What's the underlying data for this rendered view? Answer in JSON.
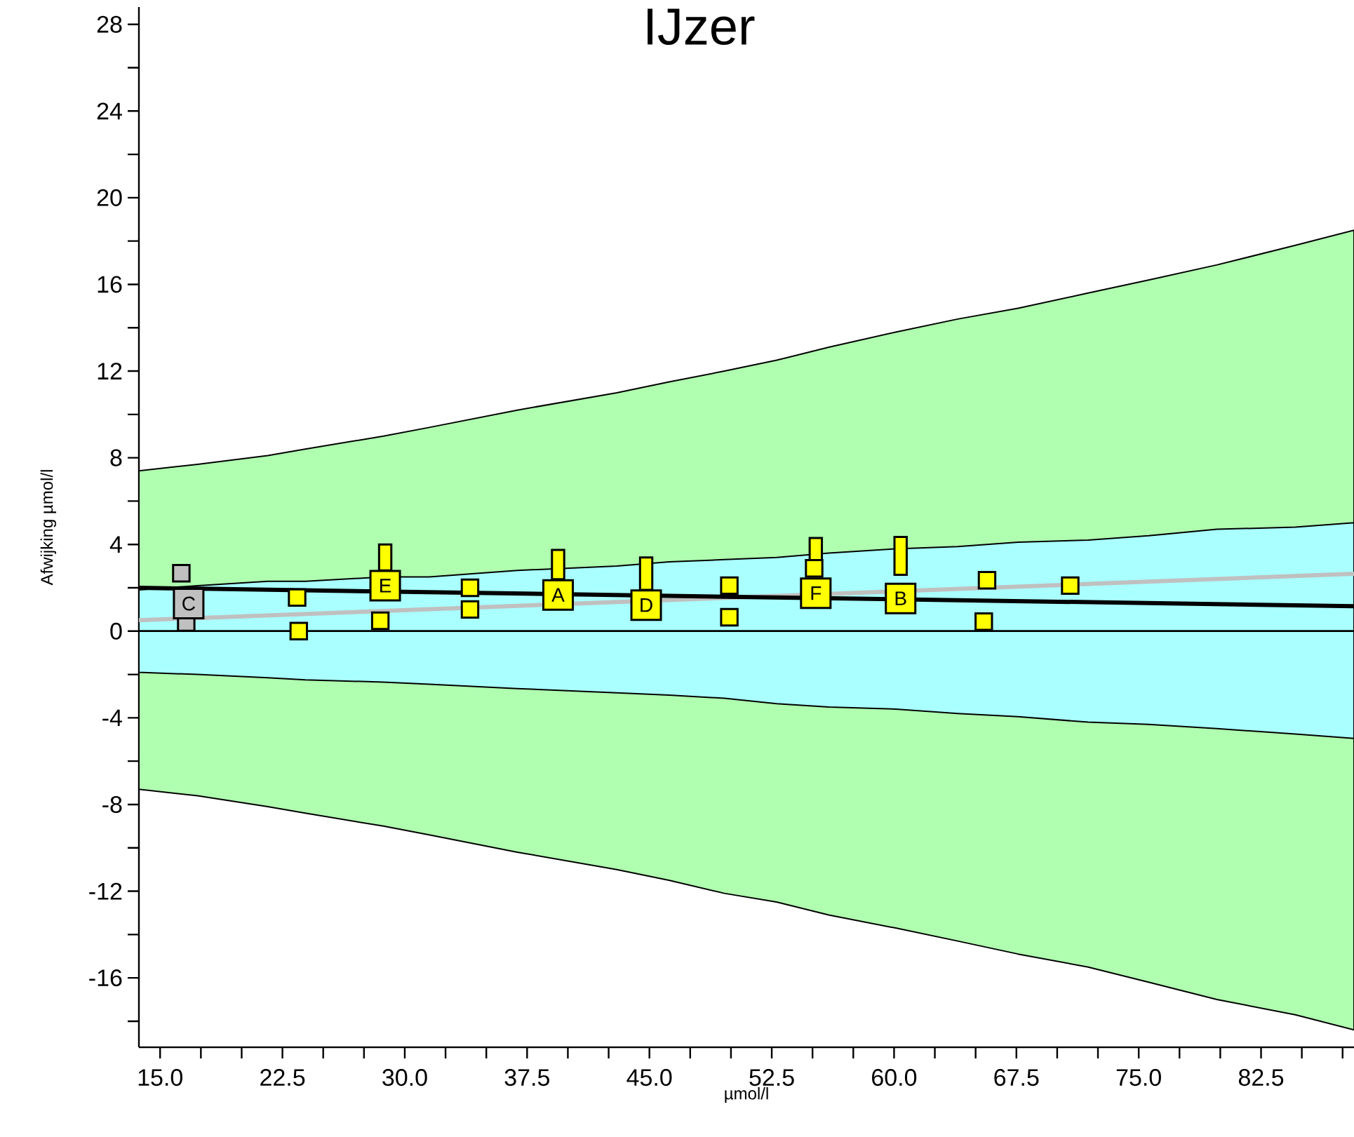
{
  "chart_data": {
    "type": "bubble",
    "title": "IJzer",
    "xlabel": "µmol/l",
    "ylabel": "Afwijking µmol/l",
    "xlim": [
      13.7,
      88.2
    ],
    "ylim": [
      -19.2,
      28.8
    ],
    "xticks": [
      {
        "value": 15,
        "label": "15.0"
      },
      {
        "value": 17.5,
        "label": null
      },
      {
        "value": 20,
        "label": null
      },
      {
        "value": 22.5,
        "label": "22.5"
      },
      {
        "value": 25,
        "label": null
      },
      {
        "value": 27.5,
        "label": null
      },
      {
        "value": 30,
        "label": "30.0"
      },
      {
        "value": 32.5,
        "label": null
      },
      {
        "value": 35,
        "label": null
      },
      {
        "value": 37.5,
        "label": "37.5"
      },
      {
        "value": 40,
        "label": null
      },
      {
        "value": 42.5,
        "label": null
      },
      {
        "value": 45,
        "label": "45.0"
      },
      {
        "value": 47.5,
        "label": null
      },
      {
        "value": 50,
        "label": null
      },
      {
        "value": 52.5,
        "label": "52.5"
      },
      {
        "value": 55,
        "label": null
      },
      {
        "value": 57.5,
        "label": null
      },
      {
        "value": 60,
        "label": "60.0"
      },
      {
        "value": 62.5,
        "label": null
      },
      {
        "value": 65,
        "label": null
      },
      {
        "value": 67.5,
        "label": "67.5"
      },
      {
        "value": 70,
        "label": null
      },
      {
        "value": 72.5,
        "label": null
      },
      {
        "value": 75,
        "label": "75.0"
      },
      {
        "value": 77.5,
        "label": null
      },
      {
        "value": 80,
        "label": null
      },
      {
        "value": 82.5,
        "label": "82.5"
      },
      {
        "value": 85,
        "label": null
      },
      {
        "value": 87.5,
        "label": null
      }
    ],
    "yticks": [
      {
        "value": -18,
        "label": null
      },
      -16,
      {
        "value": -14,
        "label": null
      },
      -12,
      {
        "value": -10,
        "label": null
      },
      -8,
      {
        "value": -6,
        "label": null
      },
      -4,
      {
        "value": -2,
        "label": null
      },
      0,
      {
        "value": 2,
        "label": null
      },
      4,
      {
        "value": 6,
        "label": null
      },
      8,
      {
        "value": 10,
        "label": null
      },
      12,
      {
        "value": 14,
        "label": null
      },
      16,
      {
        "value": 18,
        "label": null
      },
      20,
      {
        "value": 22,
        "label": null
      },
      24,
      {
        "value": 26,
        "label": null
      },
      28
    ],
    "series": [
      {
        "type": "line",
        "color": "#000000",
        "x": [
          13.7,
          17.3,
          21.6,
          23.9,
          28.7,
          31.5,
          36.9,
          43.0,
          46.2,
          49.6,
          52.8,
          56.0,
          60.1,
          63.9,
          67.6,
          71.9,
          75.6,
          79.8,
          84.6,
          88.2
        ],
        "values": [
          0,
          0,
          0,
          0,
          0,
          0,
          0,
          0,
          0,
          0,
          0,
          0,
          0,
          0,
          0,
          0,
          0,
          0,
          0,
          0
        ],
        "lower": [
          -7.3,
          -7.6,
          -8.1,
          -8.4,
          -9.0,
          -9.4,
          -10.2,
          -11.0,
          -11.5,
          -12.1,
          -12.5,
          -13.1,
          -13.7,
          -14.3,
          -14.9,
          -15.5,
          -16.2,
          -17.0,
          -17.7,
          -18.4
        ],
        "upper": [
          7.4,
          7.7,
          8.1,
          8.4,
          9.0,
          9.4,
          10.2,
          11.0,
          11.5,
          12.0,
          12.5,
          13.1,
          13.8,
          14.4,
          14.9,
          15.6,
          16.2,
          16.9,
          17.8,
          18.5
        ]
      },
      {
        "type": "line",
        "color": "#000000",
        "x": [
          13.7,
          17.3,
          21.6,
          23.9,
          28.7,
          31.5,
          36.9,
          43.0,
          46.2,
          49.6,
          52.8,
          56.0,
          60.1,
          63.9,
          67.6,
          71.9,
          75.6,
          79.8,
          84.6,
          88.2
        ],
        "values": [
          0,
          0,
          0,
          0,
          0,
          0,
          0,
          0,
          0,
          0,
          0,
          0,
          0,
          0,
          0,
          0,
          0,
          0,
          0,
          0
        ],
        "lower": [
          -1.9,
          -2.0,
          -2.15,
          -2.25,
          -2.35,
          -2.45,
          -2.65,
          -2.85,
          -2.95,
          -3.1,
          -3.35,
          -3.5,
          -3.6,
          -3.8,
          -3.95,
          -4.2,
          -4.3,
          -4.5,
          -4.75,
          -4.95
        ],
        "upper": [
          1.9,
          2.1,
          2.3,
          2.3,
          2.5,
          2.5,
          2.8,
          3.0,
          3.2,
          3.3,
          3.4,
          3.6,
          3.8,
          3.9,
          4.1,
          4.2,
          4.4,
          4.7,
          4.8,
          5.0
        ]
      },
      {
        "type": "line",
        "color": "#c0c0c0",
        "x": [
          13.7,
          88.2
        ],
        "values": [
          0.5,
          2.65
        ]
      },
      {
        "type": "line",
        "color": "#000000",
        "x": [
          13.7,
          88.2
        ],
        "values": [
          2.0,
          1.15
        ]
      },
      {
        "type": "bar",
        "color": "#ffff00",
        "x": [
          28.8,
          39.4,
          44.8,
          55.2,
          60.4
        ],
        "base": [
          2.8,
          2.4,
          1.9,
          3.2,
          2.6
        ],
        "values": [
          1.2,
          1.35,
          1.5,
          1.1,
          1.75
        ]
      },
      {
        "color": "#c0c0c0",
        "marker": "square",
        "x": [
          16.3,
          16.6,
          16.75
        ],
        "values": [
          2.67,
          0.4,
          1.27
        ],
        "sizes": [
          0.31,
          0.31,
          1
        ]
      },
      {
        "color": "#ffff00",
        "marker": "square",
        "x": [
          23.4,
          23.5,
          28.5,
          34.0,
          34.0,
          49.9,
          49.9,
          55.1,
          65.7,
          65.5,
          70.8,
          28.8,
          39.4,
          44.8,
          55.2,
          60.4
        ],
        "values": [
          1.55,
          0.0,
          0.48,
          2.0,
          1.0,
          2.1,
          0.64,
          2.9,
          2.35,
          0.44,
          2.1,
          2.1,
          1.67,
          1.2,
          1.75,
          1.51
        ],
        "sizes": [
          0.31,
          0.31,
          0.31,
          0.31,
          0.31,
          0.31,
          0.31,
          0.31,
          0.31,
          0.31,
          0.31,
          1,
          1,
          1,
          1,
          1
        ]
      }
    ],
    "annotations": [
      {
        "text": "C",
        "x": 16.75,
        "y": 1.27
      },
      {
        "text": "E",
        "x": 28.8,
        "y": 2.1
      },
      {
        "text": "A",
        "x": 39.4,
        "y": 1.67
      },
      {
        "text": "D",
        "x": 44.8,
        "y": 1.2
      },
      {
        "text": "F",
        "x": 55.2,
        "y": 1.75
      },
      {
        "text": "B",
        "x": 60.4,
        "y": 1.51
      }
    ]
  }
}
